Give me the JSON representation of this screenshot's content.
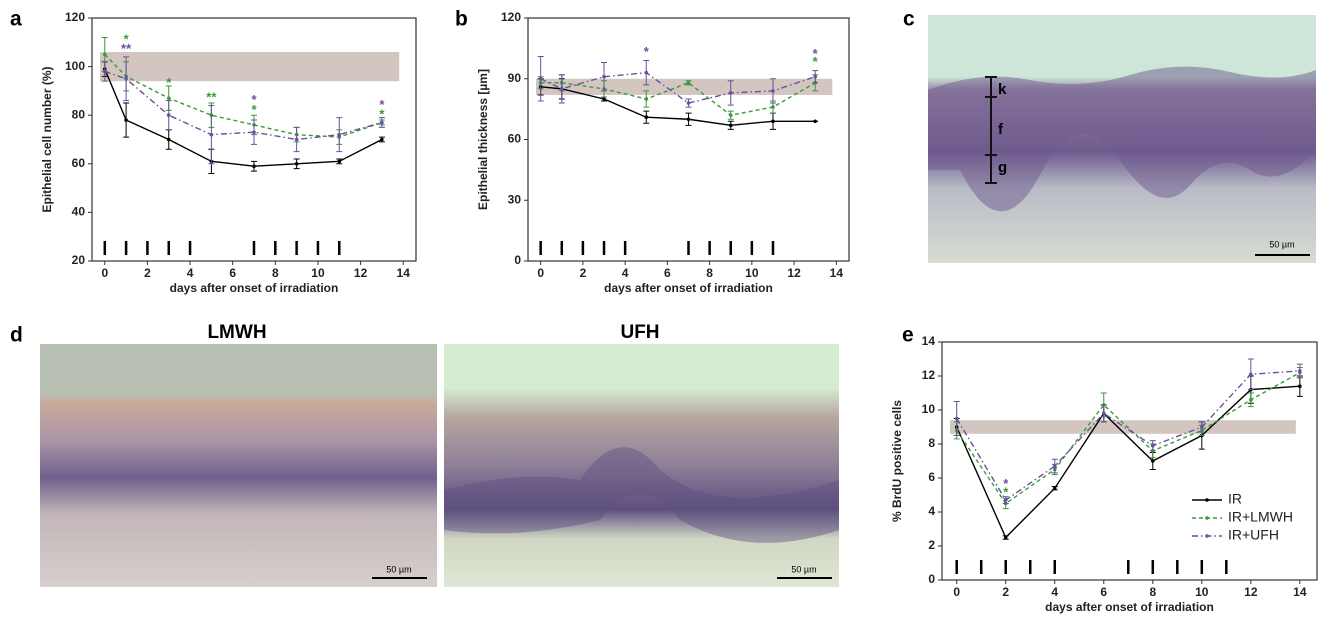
{
  "chart_data": [
    {
      "type": "line",
      "panel": "a",
      "xlabel": "days after onset of irradiation",
      "ylabel": "Epithelial cell number (%)",
      "xlim": [
        -0.6,
        14.6
      ],
      "ylim": [
        20,
        120
      ],
      "xticks": [
        0,
        2,
        4,
        6,
        8,
        10,
        12,
        14
      ],
      "yticks": [
        20,
        40,
        60,
        80,
        100,
        120
      ],
      "reference_band": [
        94,
        106
      ],
      "irradiation_days": [
        0,
        1,
        2,
        3,
        4,
        7,
        8,
        9,
        10,
        11
      ],
      "x": [
        0,
        1,
        3,
        5,
        7,
        9,
        11,
        13
      ],
      "series": [
        {
          "color": "#000000",
          "linestyle": "solid",
          "values": [
            99,
            78,
            70,
            61,
            59,
            60,
            61,
            70
          ],
          "errors": [
            3,
            7,
            4,
            5,
            2,
            2,
            1,
            1
          ]
        },
        {
          "color": "#3a9a3a",
          "linestyle": "dashed",
          "values": [
            105,
            96,
            87,
            80,
            76,
            72,
            71,
            77
          ],
          "errors": [
            7,
            6,
            5,
            5,
            4,
            3,
            3,
            1
          ]
        },
        {
          "color": "#6a4fa0",
          "linestyle": "dashdot",
          "values": [
            98,
            95,
            80,
            72,
            73,
            70,
            72,
            77
          ],
          "errors": [
            4,
            9,
            6,
            12,
            5,
            5,
            7,
            2
          ]
        }
      ],
      "annotations": [
        {
          "text": "*",
          "x": 1,
          "y": 111,
          "color": "#3a9a3a"
        },
        {
          "text": "**",
          "x": 1,
          "y": 107,
          "color": "#6a4fa0"
        },
        {
          "text": "*",
          "x": 3,
          "y": 93,
          "color": "#3a9a3a"
        },
        {
          "text": "**",
          "x": 5,
          "y": 87,
          "color": "#3a9a3a"
        },
        {
          "text": "*",
          "x": 7,
          "y": 86,
          "color": "#6a4fa0"
        },
        {
          "text": "*",
          "x": 7,
          "y": 82,
          "color": "#3a9a3a"
        },
        {
          "text": "*",
          "x": 13,
          "y": 84,
          "color": "#6a4fa0"
        },
        {
          "text": "*",
          "x": 13,
          "y": 80,
          "color": "#3a9a3a"
        }
      ]
    },
    {
      "type": "line",
      "panel": "b",
      "xlabel": "days after onset of irradiation",
      "ylabel": "Epithelial thickness [µm]",
      "xlim": [
        -0.6,
        14.6
      ],
      "ylim": [
        0,
        120
      ],
      "xticks": [
        0,
        2,
        4,
        6,
        8,
        10,
        12,
        14
      ],
      "yticks": [
        0,
        30,
        60,
        90,
        120
      ],
      "reference_band": [
        82,
        90
      ],
      "irradiation_days": [
        0,
        1,
        2,
        3,
        4,
        7,
        8,
        9,
        10,
        11
      ],
      "x": [
        0,
        1,
        3,
        5,
        7,
        9,
        11,
        13
      ],
      "series": [
        {
          "color": "#000000",
          "linestyle": "solid",
          "values": [
            86,
            85,
            80,
            71,
            70,
            67,
            69,
            69
          ],
          "errors": [
            4,
            5,
            1,
            3,
            3,
            2,
            4,
            0
          ]
        },
        {
          "color": "#3a9a3a",
          "linestyle": "dashed",
          "values": [
            88,
            88,
            85,
            80,
            88,
            72,
            76,
            88
          ],
          "errors": [
            3,
            4,
            4,
            4,
            1,
            2,
            3,
            4
          ]
        },
        {
          "color": "#6a4fa0",
          "linestyle": "dashdot",
          "values": [
            90,
            85,
            91,
            93,
            78,
            83,
            84,
            91
          ],
          "errors": [
            11,
            7,
            7,
            6,
            2,
            6,
            6,
            3
          ]
        }
      ],
      "annotations": [
        {
          "text": "*",
          "x": 5,
          "y": 103,
          "color": "#6a4fa0"
        },
        {
          "text": "*",
          "x": 13,
          "y": 102,
          "color": "#6a4fa0"
        },
        {
          "text": "*",
          "x": 13,
          "y": 98,
          "color": "#3a9a3a"
        }
      ]
    },
    {
      "type": "line",
      "panel": "e",
      "xlabel": "days after onset of irradiation",
      "ylabel": "% BrdU positive cells",
      "xlim": [
        -0.6,
        14.7
      ],
      "ylim": [
        0,
        14
      ],
      "xticks": [
        0,
        2,
        4,
        6,
        8,
        10,
        12,
        14
      ],
      "yticks": [
        0,
        2,
        4,
        6,
        8,
        10,
        12,
        14
      ],
      "reference_band": [
        8.6,
        9.4
      ],
      "irradiation_days": [
        0,
        1,
        2,
        3,
        4,
        7,
        8,
        9,
        10,
        11
      ],
      "legend": "lower right",
      "x": [
        0,
        2,
        4,
        6,
        8,
        10,
        12,
        14
      ],
      "series": [
        {
          "name": "IR",
          "color": "#000000",
          "linestyle": "solid",
          "values": [
            9.0,
            2.5,
            5.4,
            9.8,
            7.0,
            8.5,
            11.2,
            11.4
          ],
          "errors": [
            0.5,
            0.1,
            0.1,
            0.5,
            0.5,
            0.8,
            0.8,
            0.6
          ]
        },
        {
          "name": "IR+LMWH",
          "color": "#3a9a3a",
          "linestyle": "dashed",
          "values": [
            8.8,
            4.5,
            6.5,
            10.3,
            7.6,
            8.8,
            10.6,
            12.2
          ],
          "errors": [
            0.5,
            0.3,
            0.3,
            0.7,
            0.4,
            0.3,
            0.4,
            0.3
          ]
        },
        {
          "name": "IR+UFH",
          "color": "#6a4fa0",
          "linestyle": "dashdot",
          "values": [
            9.5,
            4.7,
            6.7,
            9.8,
            7.9,
            9.0,
            12.1,
            12.3
          ],
          "errors": [
            1.0,
            0.2,
            0.4,
            0.5,
            0.3,
            0.3,
            0.9,
            0.4
          ]
        }
      ],
      "annotations": [
        {
          "text": "*",
          "x": 2,
          "y": 5.6,
          "color": "#6a4fa0"
        },
        {
          "text": "*",
          "x": 2,
          "y": 5.1,
          "color": "#3a9a3a"
        }
      ]
    }
  ],
  "images": {
    "c": {
      "panel": "c",
      "labels": [
        "k",
        "f",
        "g"
      ],
      "scale": "50 µm"
    },
    "d": {
      "panel": "d",
      "items": [
        {
          "title": "LMWH",
          "scale": "50 µm"
        },
        {
          "title": "UFH",
          "scale": "50 µm"
        }
      ]
    }
  }
}
